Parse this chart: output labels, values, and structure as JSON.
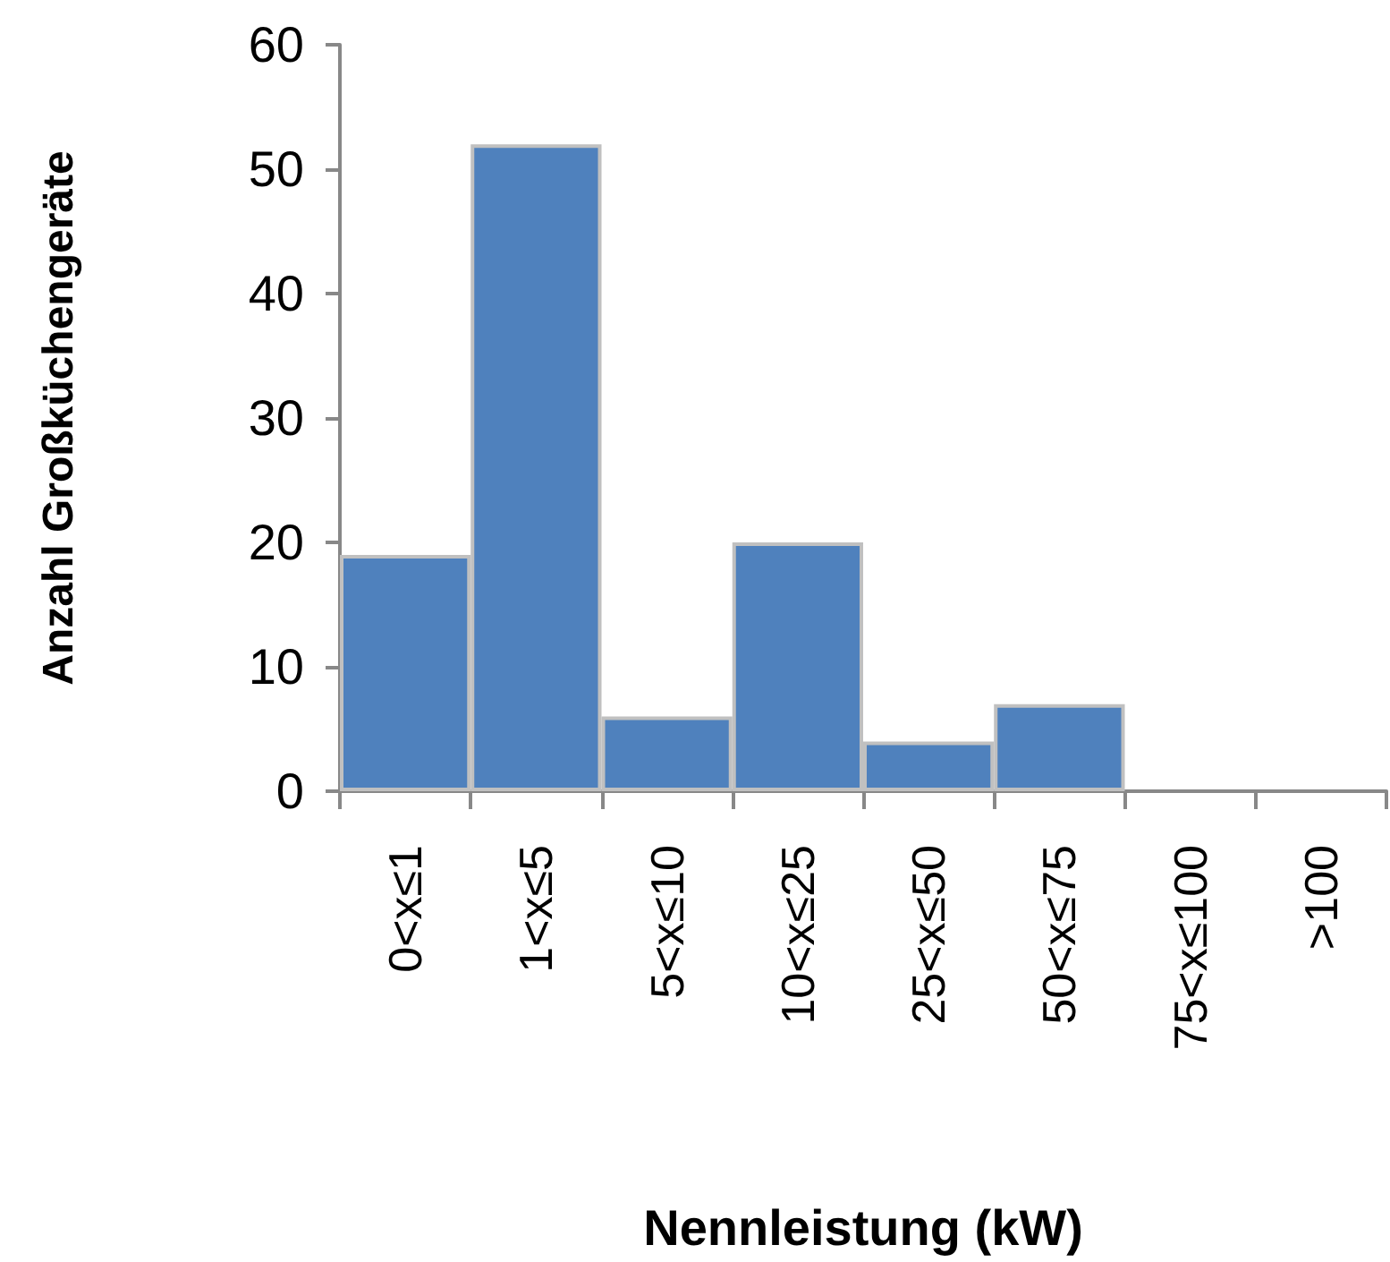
{
  "chart_data": {
    "type": "bar",
    "xlabel": "Nennleistung (kW)",
    "ylabel": "Anzahl Großküchengeräte",
    "categories": [
      "0<x≤1",
      "1<x≤5",
      "5<x≤10",
      "10<x≤25",
      "25<x≤50",
      "50<x≤75",
      "75<x≤100",
      ">100"
    ],
    "values": [
      19,
      52,
      6,
      20,
      4,
      7,
      0,
      0
    ],
    "color": "#4f81bd",
    "ylim": [
      0,
      60
    ],
    "yticks": [
      0,
      10,
      20,
      30,
      40,
      50,
      60
    ],
    "grid": false
  }
}
